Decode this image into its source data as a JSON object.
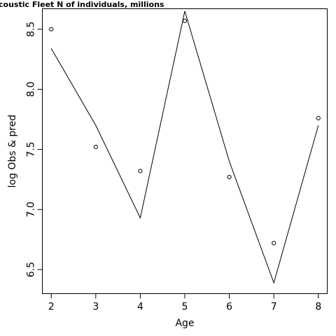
{
  "chart_data": {
    "type": "line",
    "title": "coustic Fleet   N of individuals, millions",
    "xlabel": "Age",
    "ylabel": "log Obs & pred",
    "x": [
      2,
      3,
      4,
      5,
      6,
      7,
      8
    ],
    "xticks": [
      "2",
      "3",
      "4",
      "5",
      "6",
      "7",
      "8"
    ],
    "yticks": [
      "6.5",
      "7.0",
      "7.5",
      "8.0",
      "8.5"
    ],
    "xlim": [
      1.8,
      8.2
    ],
    "ylim": [
      6.3,
      8.67
    ],
    "series": [
      {
        "style": "points",
        "values": [
          8.5,
          7.52,
          7.32,
          8.57,
          7.27,
          6.72,
          7.76
        ]
      },
      {
        "style": "line",
        "values": [
          8.34,
          7.7,
          6.93,
          8.65,
          7.4,
          6.39,
          7.7
        ]
      }
    ],
    "grid": false,
    "legend": "none"
  }
}
